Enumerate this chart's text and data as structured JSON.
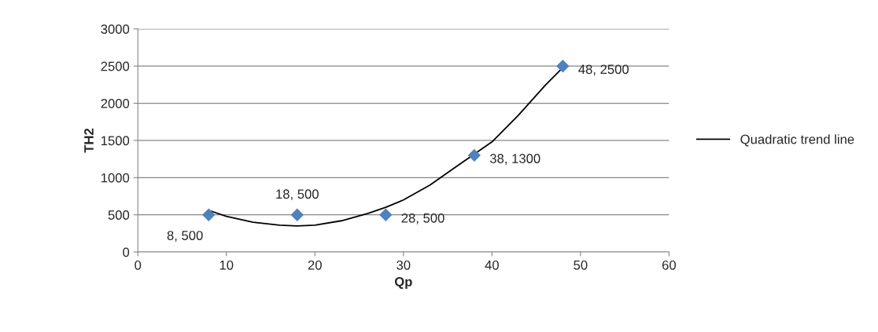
{
  "chart_data": {
    "type": "scatter",
    "xlabel": "Qp",
    "ylabel": "TH2",
    "xlim": [
      0,
      60
    ],
    "xticks": [
      0,
      10,
      20,
      30,
      40,
      50,
      60
    ],
    "ylim": [
      0,
      3000
    ],
    "yticks": [
      0,
      500,
      1000,
      1500,
      2000,
      2500,
      3000
    ],
    "grid": "y",
    "legend": "right",
    "series": [
      {
        "marker": "diamond",
        "color": "#4f81bd",
        "x": [
          8,
          18,
          28,
          38,
          48
        ],
        "values": [
          500,
          500,
          500,
          1300,
          2500
        ],
        "value_labels": [
          "8, 500",
          "18, 500",
          "28, 500",
          "38, 1300",
          "48, 2500"
        ]
      },
      {
        "type": "line",
        "name": "Quadratic trend line",
        "color": "#000000",
        "line_style": "solid",
        "x": [
          8,
          10,
          13,
          16,
          18,
          20,
          23,
          26,
          28,
          30,
          33,
          36,
          40,
          43,
          46,
          48
        ],
        "values": [
          560,
          480,
          400,
          360,
          350,
          360,
          420,
          520,
          600,
          700,
          900,
          1150,
          1480,
          1840,
          2240,
          2480
        ]
      }
    ]
  }
}
